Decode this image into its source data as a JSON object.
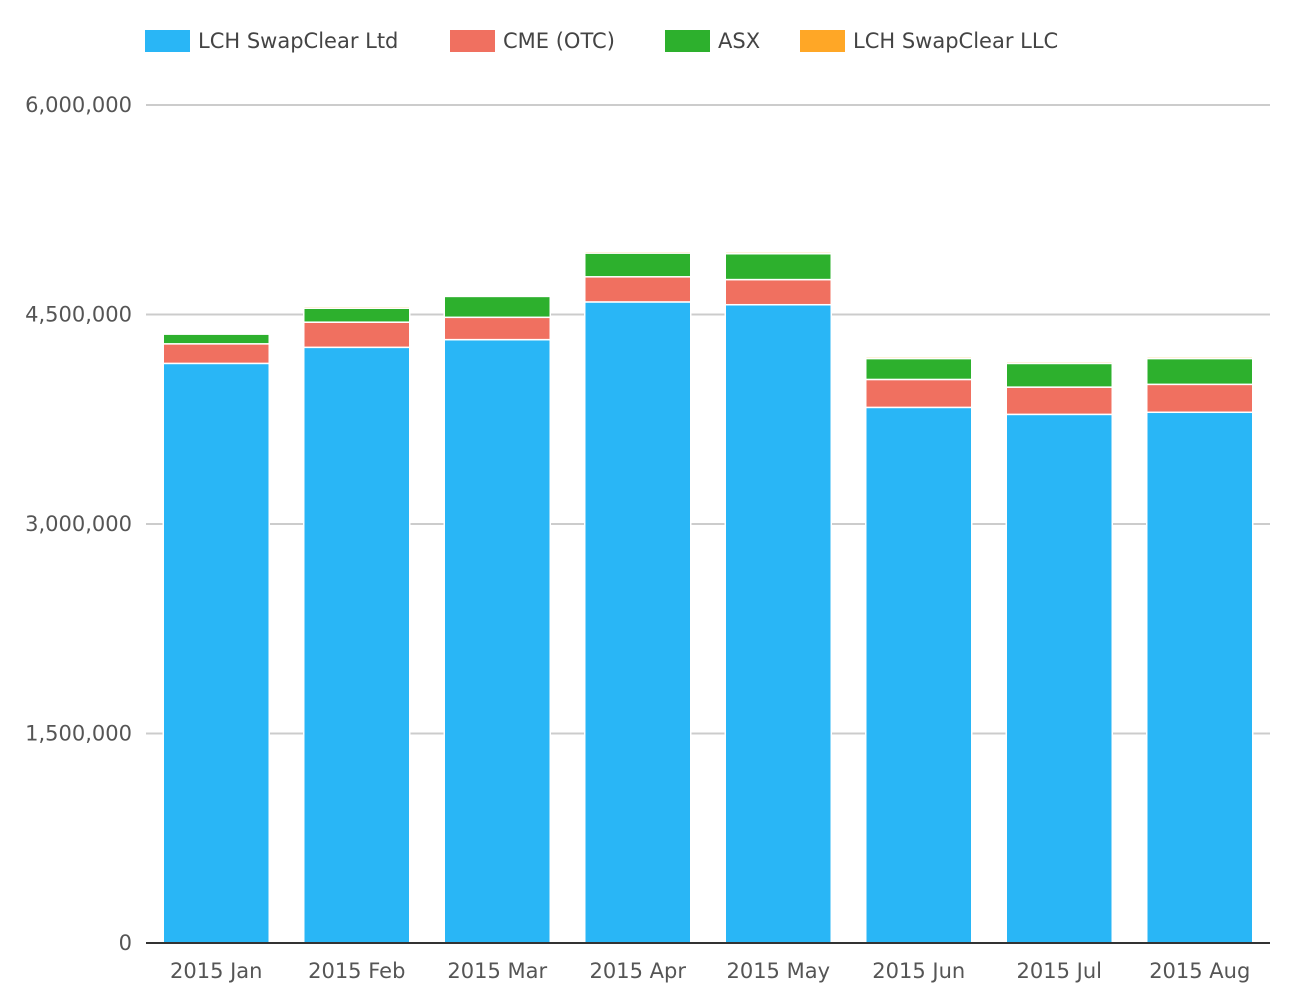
{
  "chart_data": {
    "type": "bar",
    "stacked": true,
    "categories": [
      "2015 Jan",
      "2015 Feb",
      "2015 Mar",
      "2015 Apr",
      "2015 May",
      "2015 Jun",
      "2015 Jul",
      "2015 Aug"
    ],
    "series": [
      {
        "name": "LCH SwapClear Ltd",
        "color": "#29b6f6",
        "values": [
          4150000,
          4265000,
          4320000,
          4590000,
          4570000,
          3835000,
          3785000,
          3800000
        ]
      },
      {
        "name": "CME (OTC)",
        "color": "#f07060",
        "values": [
          140000,
          180000,
          160000,
          180000,
          180000,
          200000,
          195000,
          200000
        ]
      },
      {
        "name": "ASX",
        "color": "#2db02d",
        "values": [
          70000,
          100000,
          150000,
          170000,
          185000,
          150000,
          170000,
          185000
        ]
      },
      {
        "name": "LCH SwapClear LLC",
        "color": "#ffa726",
        "values": [
          10000,
          12000,
          10000,
          12000,
          12000,
          12000,
          12000,
          12000
        ]
      }
    ],
    "ylim": [
      0,
      6000000
    ],
    "yticks": [
      0,
      1500000,
      3000000,
      4500000,
      6000000
    ],
    "ytick_labels": [
      "0",
      "1,500,000",
      "3,000,000",
      "4,500,000",
      "6,000,000"
    ],
    "grid": true,
    "legend": "top"
  }
}
